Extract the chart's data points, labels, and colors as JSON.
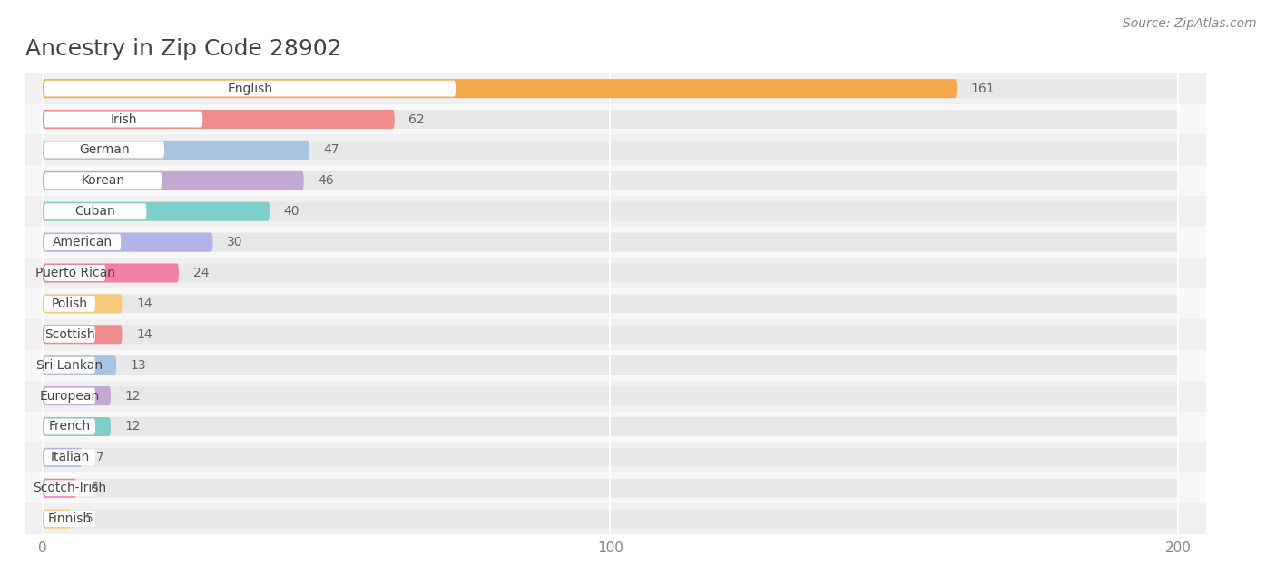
{
  "title": "Ancestry in Zip Code 28902",
  "source": "Source: ZipAtlas.com",
  "categories": [
    "English",
    "Irish",
    "German",
    "Korean",
    "Cuban",
    "American",
    "Puerto Rican",
    "Polish",
    "Scottish",
    "Sri Lankan",
    "European",
    "French",
    "Italian",
    "Scotch-Irish",
    "Finnish"
  ],
  "values": [
    161,
    62,
    47,
    46,
    40,
    30,
    24,
    14,
    14,
    13,
    12,
    12,
    7,
    6,
    5
  ],
  "colors": [
    "#F5A84B",
    "#F08C8C",
    "#A8C4E0",
    "#C3A8D1",
    "#7ECECA",
    "#B0B4E8",
    "#F080A8",
    "#F5C87A",
    "#F08C8C",
    "#A8C4E0",
    "#C3A8D1",
    "#7ECECA",
    "#B0B4E8",
    "#F080A8",
    "#F5C87A"
  ],
  "xlim_max": 200,
  "xticks": [
    0,
    100,
    200
  ],
  "row_bg_even": "#f0f0f0",
  "row_bg_odd": "#f8f8f8",
  "bar_track_color": "#e8e8e8",
  "title_fontsize": 18,
  "label_fontsize": 10,
  "value_fontsize": 10,
  "source_fontsize": 10
}
